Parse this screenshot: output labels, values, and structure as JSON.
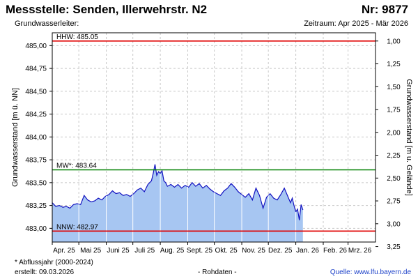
{
  "header": {
    "station": "Messstelle: Senden, Illerwehrstr. N2",
    "number": "Nr: 9877",
    "aquifer": "Grundwasserleiter:",
    "period": "Zeitraum: Apr 2025 - Mär 2026"
  },
  "footer": {
    "note": "* Abflussjahr (2000-2024)",
    "created": "erstellt:  09.03.2026",
    "raw": "- Rohdaten -",
    "source": "Quelle: www.lfu.bayern.de"
  },
  "colors": {
    "fill": "#a7c6f2",
    "line": "#1010c0",
    "hhw": "#e00000",
    "mw": "#008000",
    "nnw": "#e00000",
    "grid": "#c8c8c8",
    "month_line": "#ffffff"
  },
  "chart_data": {
    "type": "area",
    "ylabel": "Grundwasserstand [m ü. NN]",
    "y2label": "Grundwasserstand [m u. Gelände]",
    "ylim": [
      482.85,
      485.14
    ],
    "yticks": [
      483.0,
      483.25,
      483.5,
      483.75,
      484.0,
      484.25,
      484.5,
      484.75,
      485.0
    ],
    "ytick_labels": [
      "483,00",
      "483,25",
      "483,50",
      "483,75",
      "484,00",
      "484,25",
      "484,50",
      "484,75",
      "485,00"
    ],
    "y2_ground_level": 486.05,
    "y2ticks": [
      1.0,
      1.25,
      1.5,
      1.75,
      2.0,
      2.25,
      2.5,
      2.75,
      3.0,
      3.25
    ],
    "y2tick_labels": [
      "1,00",
      "1,25",
      "1,50",
      "1,75",
      "2,00",
      "2,25",
      "2,50",
      "2,75",
      "3,00",
      "3,25"
    ],
    "xlim": [
      "2025-04-01",
      "2026-04-01"
    ],
    "xticks": [
      "2025-04-01",
      "2025-05-01",
      "2025-06-01",
      "2025-07-01",
      "2025-08-01",
      "2025-09-01",
      "2025-10-01",
      "2025-11-01",
      "2025-12-01",
      "2026-01-01",
      "2026-02-01",
      "2026-03-01"
    ],
    "xtick_labels": [
      "Apr. 25",
      "Mai 25",
      "Juni 25",
      "Juli 25",
      "Aug. 25",
      "Sept. 25",
      "Okt. 25",
      "Nov. 25",
      "Dez. 25",
      "Jan. 26",
      "Feb. 26",
      "Mrz. 26"
    ],
    "reference_lines": [
      {
        "label": "HHW: 485.05",
        "value": 485.05,
        "key": "hhw"
      },
      {
        "label": "MW*: 483.64",
        "value": 483.64,
        "key": "mw"
      },
      {
        "label": "NNW: 482.97",
        "value": 482.97,
        "key": "nnw"
      }
    ],
    "series": [
      {
        "x": [
          "2025-04-01",
          "2025-04-05",
          "2025-04-09",
          "2025-04-13",
          "2025-04-17",
          "2025-04-21",
          "2025-04-25",
          "2025-04-29",
          "2025-05-03",
          "2025-05-07",
          "2025-05-11",
          "2025-05-15",
          "2025-05-19",
          "2025-05-23",
          "2025-05-27",
          "2025-05-31",
          "2025-06-04",
          "2025-06-08",
          "2025-06-12",
          "2025-06-16",
          "2025-06-20",
          "2025-06-24",
          "2025-06-28",
          "2025-07-02",
          "2025-07-06",
          "2025-07-10",
          "2025-07-14",
          "2025-07-18",
          "2025-07-22",
          "2025-07-24",
          "2025-07-26",
          "2025-07-28",
          "2025-07-30",
          "2025-08-01",
          "2025-08-03",
          "2025-08-05",
          "2025-08-07",
          "2025-08-09",
          "2025-08-13",
          "2025-08-17",
          "2025-08-21",
          "2025-08-25",
          "2025-08-29",
          "2025-09-02",
          "2025-09-06",
          "2025-09-10",
          "2025-09-14",
          "2025-09-18",
          "2025-09-22",
          "2025-09-26",
          "2025-09-30",
          "2025-10-04",
          "2025-10-08",
          "2025-10-12",
          "2025-10-16",
          "2025-10-20",
          "2025-10-24",
          "2025-10-28",
          "2025-11-01",
          "2025-11-05",
          "2025-11-09",
          "2025-11-13",
          "2025-11-17",
          "2025-11-21",
          "2025-11-25",
          "2025-11-29",
          "2025-12-03",
          "2025-12-07",
          "2025-12-11",
          "2025-12-15",
          "2025-12-19",
          "2025-12-23",
          "2025-12-26",
          "2025-12-28",
          "2025-12-30",
          "2026-01-01",
          "2026-01-03",
          "2026-01-05",
          "2026-01-07",
          "2026-01-09"
        ],
        "y": [
          483.28,
          483.24,
          483.25,
          483.23,
          483.24,
          483.22,
          483.26,
          483.27,
          483.26,
          483.36,
          483.31,
          483.29,
          483.3,
          483.33,
          483.31,
          483.35,
          483.37,
          483.41,
          483.38,
          483.39,
          483.36,
          483.37,
          483.35,
          483.38,
          483.42,
          483.44,
          483.4,
          483.48,
          483.52,
          483.6,
          483.7,
          483.58,
          483.62,
          483.6,
          483.63,
          483.52,
          483.5,
          483.46,
          483.48,
          483.45,
          483.48,
          483.44,
          483.47,
          483.45,
          483.5,
          483.46,
          483.49,
          483.44,
          483.47,
          483.43,
          483.4,
          483.38,
          483.36,
          483.41,
          483.44,
          483.49,
          483.45,
          483.4,
          483.37,
          483.34,
          483.38,
          483.31,
          483.44,
          483.36,
          483.22,
          483.34,
          483.38,
          483.33,
          483.31,
          483.37,
          483.44,
          483.35,
          483.28,
          483.33,
          483.25,
          483.18,
          483.21,
          483.09,
          483.26,
          483.2
        ]
      }
    ]
  }
}
